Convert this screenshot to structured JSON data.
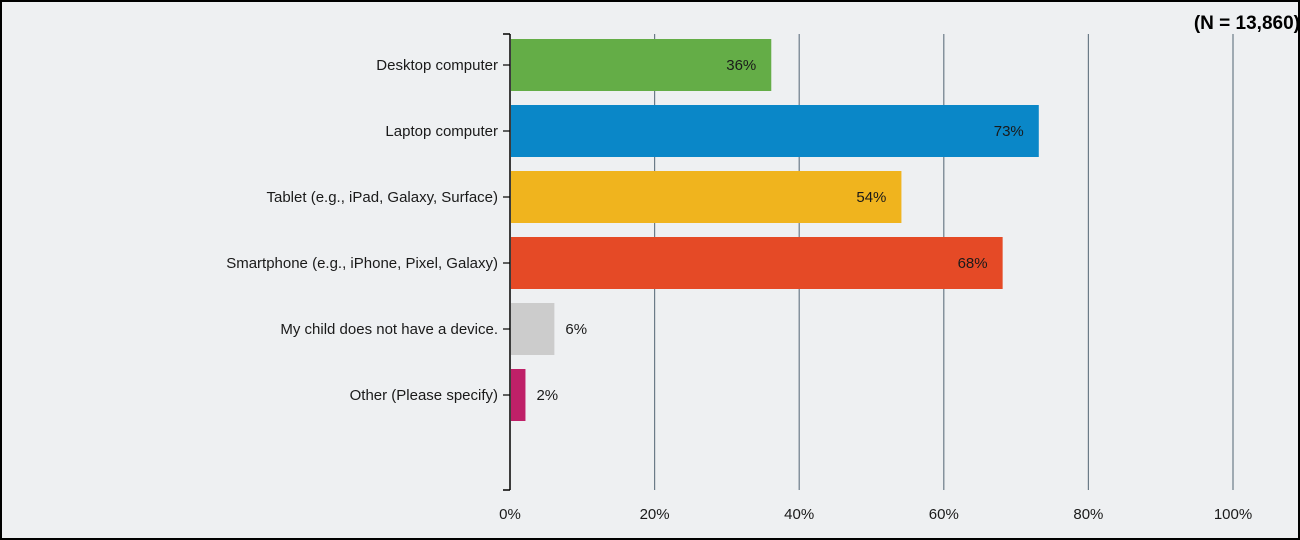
{
  "sample_label": "(N = 13,860)",
  "colors": {
    "background": "#eef0f2",
    "gridline": "#6b7b88",
    "axis": "#000000"
  },
  "chart_data": {
    "type": "bar",
    "orientation": "horizontal",
    "categories": [
      "Desktop computer",
      "Laptop computer",
      "Tablet (e.g., iPad, Galaxy, Surface)",
      "Smartphone (e.g., iPhone, Pixel, Galaxy)",
      "My child does not have a device.",
      "Other (Please specify)"
    ],
    "values": [
      36,
      73,
      54,
      68,
      6,
      2
    ],
    "data_labels": [
      "36%",
      "73%",
      "54%",
      "68%",
      "6%",
      "2%"
    ],
    "bar_colors": [
      "#64ad47",
      "#0a87c8",
      "#f0b41e",
      "#e54a26",
      "#cccccc",
      "#bf2068"
    ],
    "xlim": [
      0,
      100
    ],
    "x_ticks": [
      0,
      20,
      40,
      60,
      80,
      100
    ],
    "x_tick_labels": [
      "0%",
      "20%",
      "40%",
      "60%",
      "80%",
      "100%"
    ],
    "grid": true,
    "xlabel": "",
    "ylabel": "",
    "title": ""
  }
}
